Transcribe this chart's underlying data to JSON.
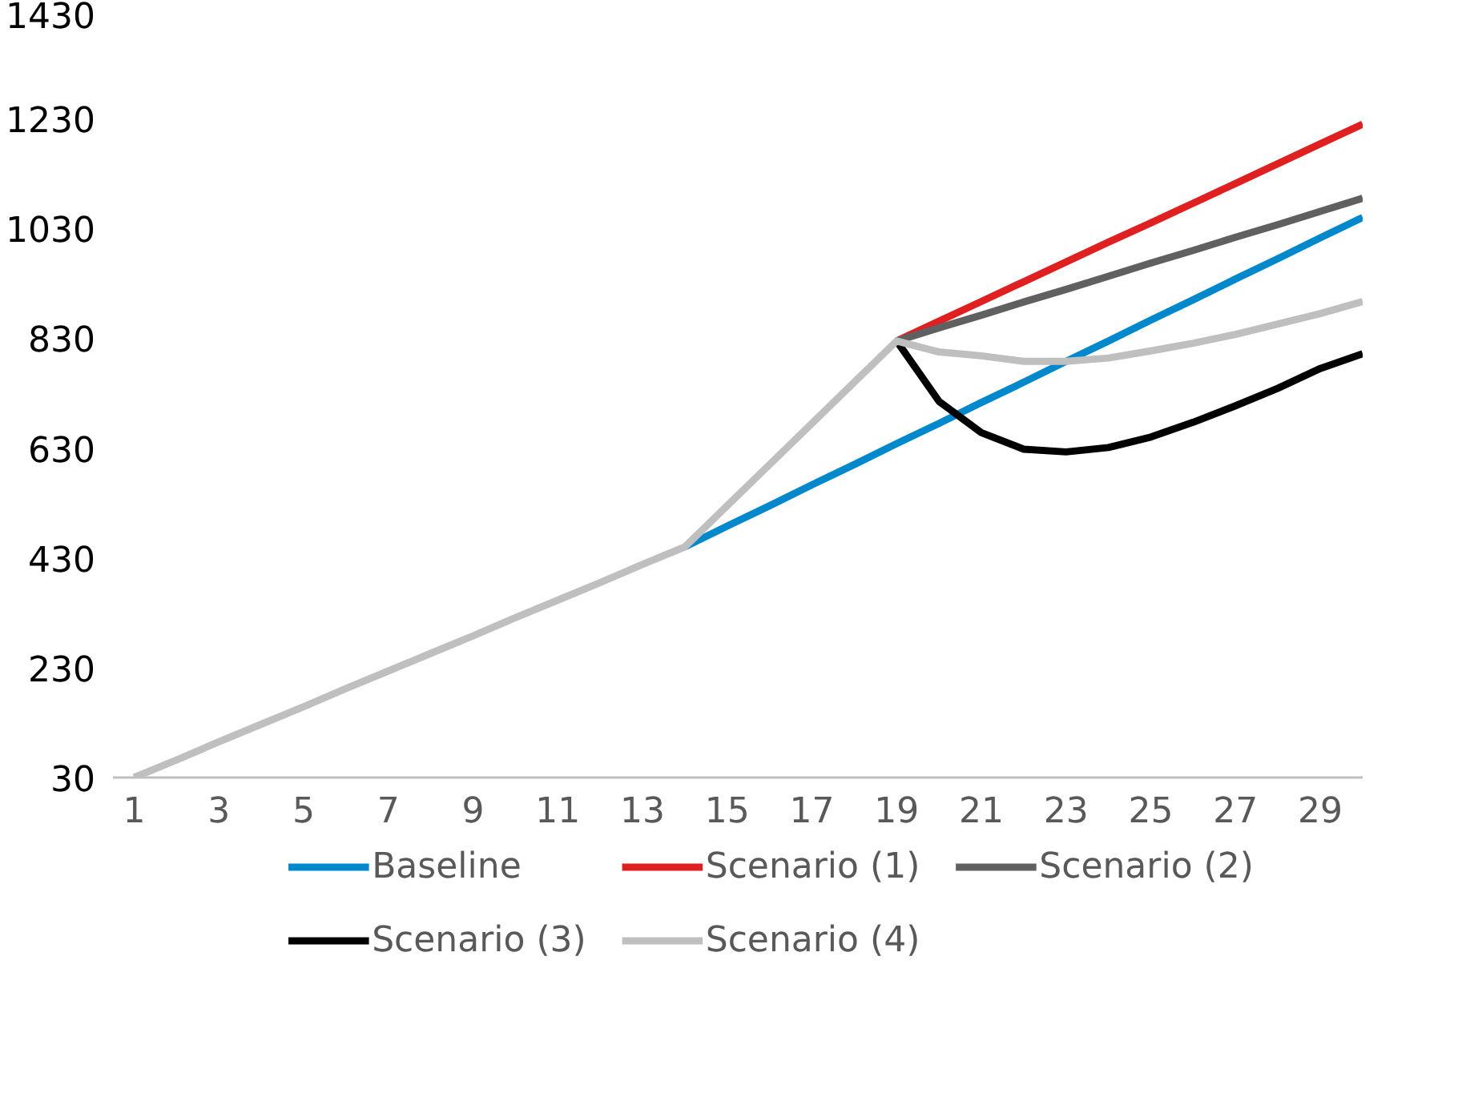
{
  "chart_data": {
    "type": "line",
    "x": [
      1,
      2,
      3,
      4,
      5,
      6,
      7,
      8,
      9,
      10,
      11,
      12,
      13,
      14,
      15,
      16,
      17,
      18,
      19,
      20,
      21,
      22,
      23,
      24,
      25,
      26,
      27,
      28,
      29,
      30
    ],
    "xlim": [
      0.5,
      30
    ],
    "xticks": [
      1,
      3,
      5,
      7,
      9,
      11,
      13,
      15,
      17,
      19,
      21,
      23,
      25,
      27,
      29
    ],
    "ylim": [
      30,
      1430
    ],
    "yticks": [
      30,
      230,
      430,
      630,
      830,
      1030,
      1230,
      1430
    ],
    "grid": false,
    "legend": "bottom",
    "line_style": "solid",
    "marker": "none",
    "series": [
      {
        "name": "Baseline",
        "color": "#0088cc",
        "values": [
          null,
          null,
          null,
          null,
          null,
          null,
          null,
          null,
          null,
          null,
          null,
          null,
          null,
          450,
          488,
          525,
          563,
          600,
          638,
          675,
          713,
          750,
          788,
          825,
          863,
          900,
          938,
          975,
          1013,
          1050
        ]
      },
      {
        "name": "Scenario (1)",
        "color": "#e02020",
        "values": [
          null,
          null,
          null,
          null,
          null,
          null,
          null,
          null,
          null,
          null,
          null,
          null,
          null,
          null,
          null,
          null,
          null,
          null,
          825,
          861,
          897,
          933,
          969,
          1005,
          1040,
          1076,
          1112,
          1148,
          1184,
          1220
        ]
      },
      {
        "name": "Scenario (2)",
        "color": "#606060",
        "values": [
          null,
          null,
          null,
          null,
          null,
          null,
          null,
          null,
          null,
          null,
          null,
          null,
          null,
          null,
          null,
          null,
          null,
          null,
          825,
          849,
          872,
          896,
          919,
          943,
          967,
          990,
          1014,
          1037,
          1061,
          1085
        ]
      },
      {
        "name": "Scenario (3)",
        "color": "#000000",
        "values": [
          null,
          null,
          null,
          null,
          null,
          null,
          null,
          null,
          null,
          null,
          null,
          null,
          null,
          null,
          null,
          null,
          null,
          null,
          825,
          715,
          658,
          628,
          623,
          631,
          650,
          677,
          707,
          739,
          775,
          802
        ]
      },
      {
        "name": "Scenario (4)",
        "color": "#bfbfbf",
        "values": [
          30,
          62,
          95,
          127,
          159,
          192,
          224,
          256,
          288,
          321,
          353,
          385,
          418,
          450,
          525,
          600,
          675,
          750,
          825,
          805,
          798,
          788,
          788,
          794,
          807,
          821,
          837,
          856,
          875,
          897
        ]
      }
    ]
  }
}
